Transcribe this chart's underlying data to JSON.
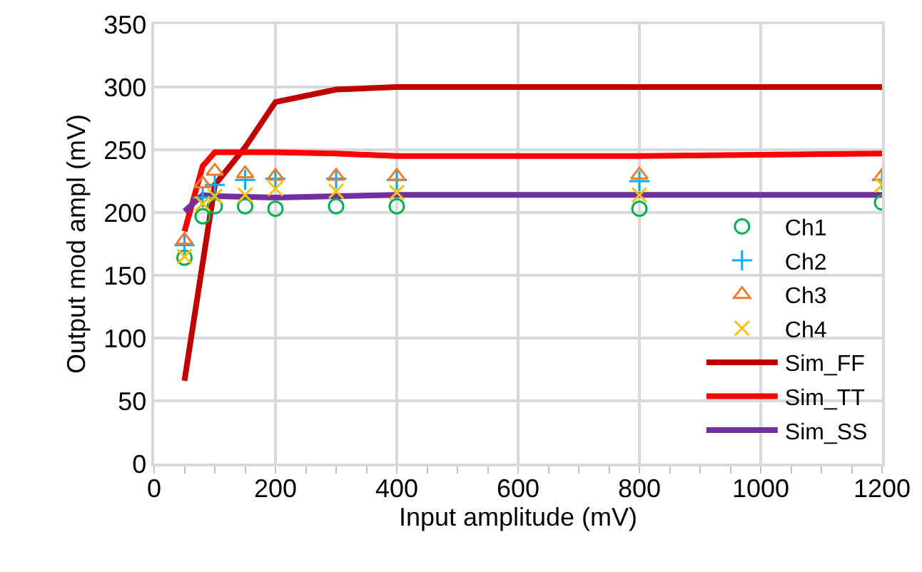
{
  "chart_data": {
    "type": "scatter",
    "xlabel": "Input amplitude (mV)",
    "ylabel": "Output mod ampl (mV)",
    "xlim": [
      0,
      1200
    ],
    "xticks": [
      0,
      200,
      400,
      600,
      800,
      1000,
      1200
    ],
    "ylim": [
      0,
      350
    ],
    "yticks": [
      0,
      50,
      100,
      150,
      200,
      250,
      300,
      350
    ],
    "grid": true,
    "legend": "bottom right",
    "series": [
      {
        "name": "Ch1",
        "type": "scatter",
        "marker": "circle",
        "color": "#00b050",
        "x": [
          50,
          80,
          100,
          150,
          200,
          300,
          400,
          800,
          1200
        ],
        "values": [
          164,
          197,
          205,
          205,
          203,
          205,
          205,
          203,
          208
        ]
      },
      {
        "name": "Ch2",
        "type": "scatter",
        "marker": "cross",
        "color": "#00b0f0",
        "x": [
          50,
          80,
          100,
          150,
          200,
          300,
          400,
          800,
          1200
        ],
        "values": [
          174,
          212,
          222,
          226,
          227,
          227,
          226,
          225,
          226
        ]
      },
      {
        "name": "Ch3",
        "type": "scatter",
        "marker": "triangle",
        "color": "#ed7d31",
        "x": [
          50,
          80,
          100,
          150,
          200,
          300,
          400,
          800,
          1200
        ],
        "values": [
          178,
          223,
          233,
          231,
          229,
          229,
          229,
          230,
          229
        ]
      },
      {
        "name": "Ch4",
        "type": "scatter",
        "marker": "x",
        "color": "#ffc000",
        "x": [
          50,
          80,
          100,
          150,
          200,
          300,
          400,
          800,
          1200
        ],
        "values": [
          165,
          207,
          213,
          214,
          219,
          217,
          216,
          214,
          222
        ]
      },
      {
        "name": "Sim_FF",
        "type": "line",
        "color": "#c00000",
        "x": [
          50,
          100,
          150,
          200,
          300,
          400,
          800,
          1200
        ],
        "values": [
          66,
          222,
          252,
          288,
          298,
          300,
          300,
          300
        ]
      },
      {
        "name": "Sim_TT",
        "type": "line",
        "color": "#ff0000",
        "x": [
          50,
          80,
          100,
          200,
          300,
          400,
          800,
          1200
        ],
        "values": [
          185,
          237,
          248,
          248,
          247,
          245,
          245,
          247
        ]
      },
      {
        "name": "Sim_SS",
        "type": "line",
        "color": "#7030a0",
        "x": [
          50,
          80,
          100,
          200,
          400,
          800,
          1200
        ],
        "values": [
          201,
          214,
          213,
          212,
          214,
          214,
          214
        ]
      }
    ]
  }
}
